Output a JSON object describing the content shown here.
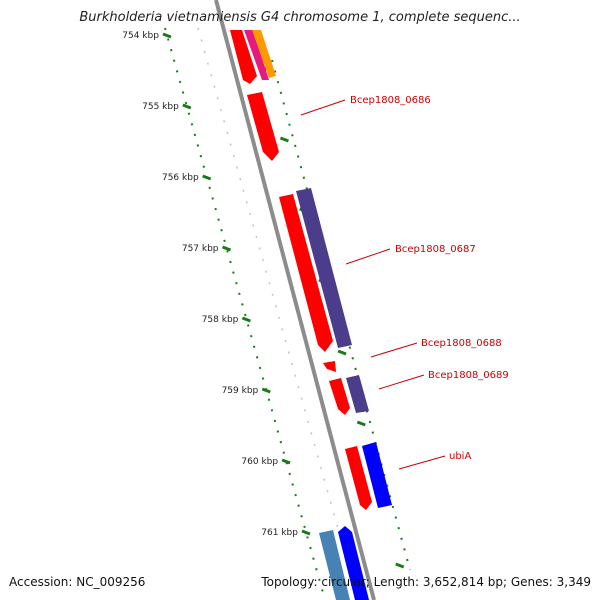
{
  "title": "Burkholderia vietnamiensis G4 chromosome 1, complete sequenc...",
  "accession": "Accession: NC_009256",
  "summary": "Topology: circular; Length: 3,652,814 bp; Genes: 3,349",
  "ticks": [
    "754 kbp",
    "755 kbp",
    "756 kbp",
    "757 kbp",
    "758 kbp",
    "759 kbp",
    "760 kbp",
    "761 kbp"
  ],
  "genes": [
    {
      "label": "Bcep1808_0686",
      "color": "#ff0000"
    },
    {
      "label": "Bcep1808_0687",
      "color": "#ff0000"
    },
    {
      "label": "Bcep1808_0688",
      "color": "#ff0000"
    },
    {
      "label": "Bcep1808_0689",
      "color": "#ff0000"
    },
    {
      "label": "ubiA",
      "color": "#ff0000"
    }
  ],
  "colors": {
    "backbone": "#8c8c8c",
    "tick": "#1a7a1a",
    "label": "#cc0000",
    "gene_red": "#ff0000",
    "gene_purple": "#4b3d8c",
    "gene_blue": "#0000ff",
    "gene_steelblue": "#4682b4",
    "gene_pink": "#e6197e",
    "gene_orange": "#ff9900"
  }
}
